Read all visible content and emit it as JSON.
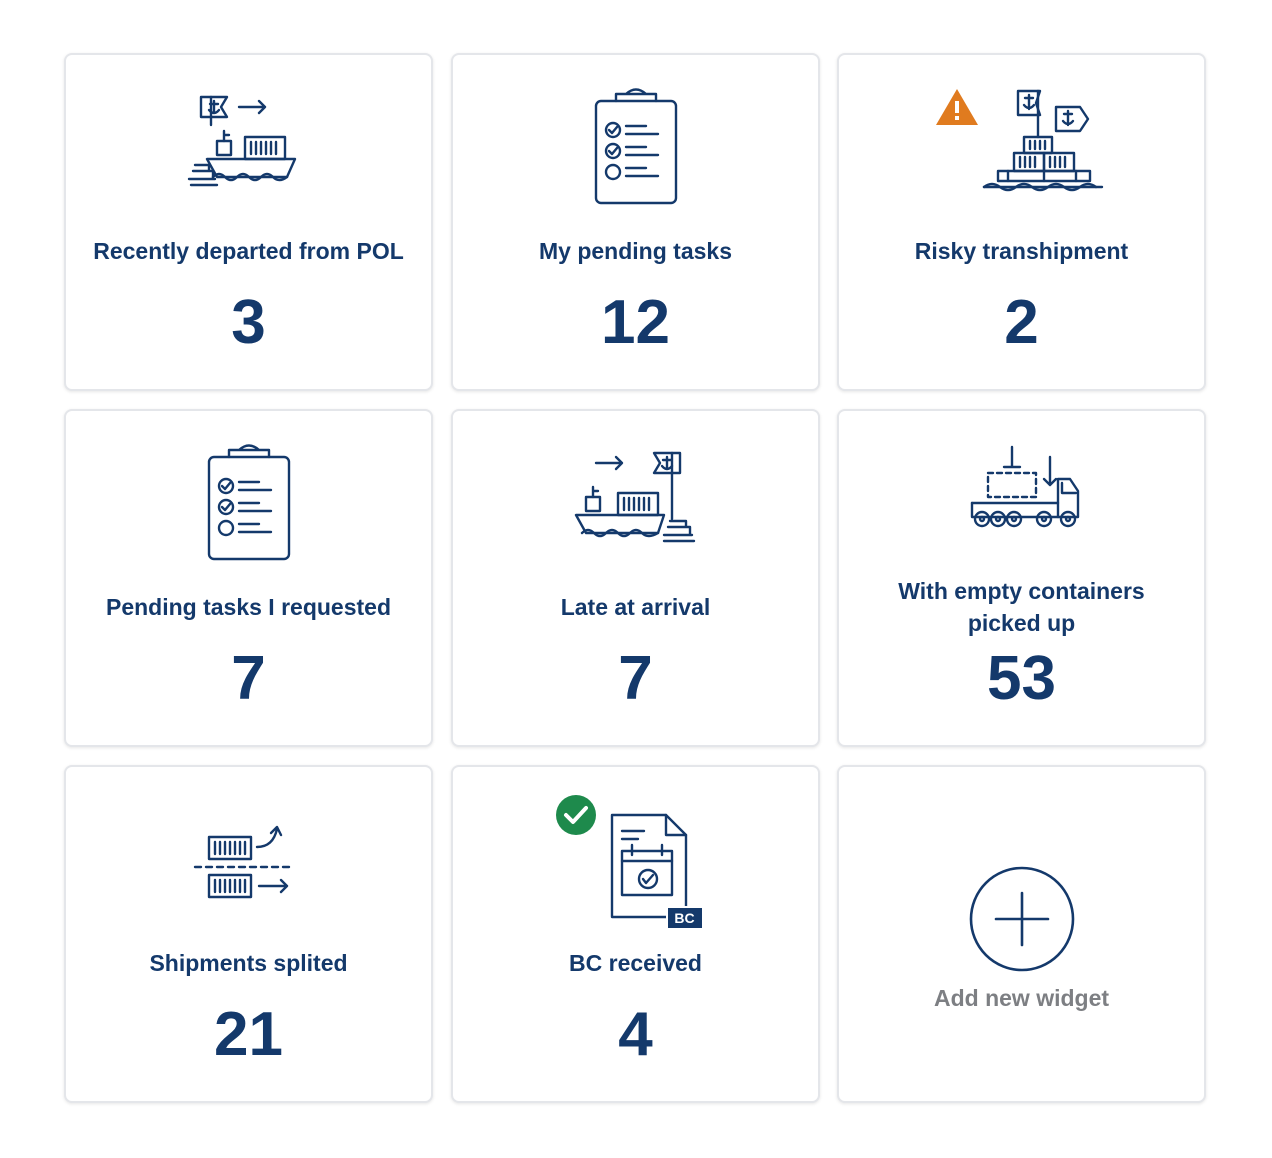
{
  "widgets": [
    {
      "title": "Recently departed from POL",
      "value": "3",
      "icon": "ship-departure-icon"
    },
    {
      "title": "My pending tasks",
      "value": "12",
      "icon": "clipboard-tasks-icon"
    },
    {
      "title": "Risky transhipment",
      "value": "2",
      "icon": "transhipment-warning-icon"
    },
    {
      "title": "Pending tasks I requested",
      "value": "7",
      "icon": "clipboard-tasks-icon"
    },
    {
      "title": "Late at arrival",
      "value": "7",
      "icon": "ship-arrival-icon"
    },
    {
      "title_line1": "With empty containers",
      "title_line2": "picked up",
      "value": "53",
      "icon": "truck-container-icon"
    },
    {
      "title": "Shipments splited",
      "value": "21",
      "icon": "container-split-icon"
    },
    {
      "title": "BC received",
      "value": "4",
      "icon": "booking-confirmation-icon",
      "badge_text": "BC"
    }
  ],
  "add_widget": {
    "label": "Add new widget",
    "icon": "plus-circle-icon"
  },
  "colors": {
    "navy": "#14396b",
    "warning": "#e07b1f",
    "success": "#1e8a4c",
    "muted": "#7d7f83",
    "border": "#e4e6ea"
  }
}
